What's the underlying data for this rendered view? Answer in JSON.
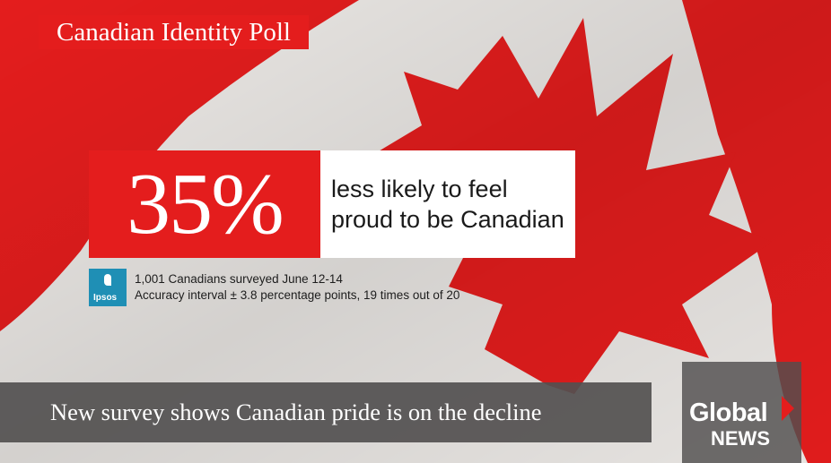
{
  "colors": {
    "flag_red": "#e41d1d",
    "flag_white": "#ece9e6",
    "ipsos_blue": "#1f8fb5",
    "lower_third_gray": "#525050"
  },
  "tag": {
    "label": "Canadian Identity Poll"
  },
  "stat": {
    "value": "35%",
    "line1": "less likely to feel",
    "line2": "proud to be Canadian"
  },
  "source": {
    "logo_label": "Ipsos",
    "line1": "1,001 Canadians surveyed June 12-14",
    "line2": "Accuracy interval ± 3.8 percentage points, 19 times out of 20"
  },
  "headline": {
    "text": "New survey shows Canadian pride is on the decline"
  },
  "network": {
    "line1": "Global",
    "line2": "NEWS",
    "icon": "chevron-right-icon"
  }
}
